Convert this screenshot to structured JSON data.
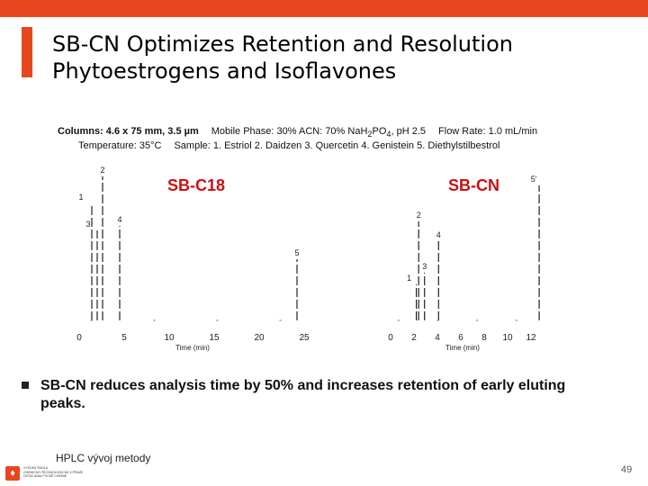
{
  "slide": {
    "title_lines": [
      "SB-CN Optimizes Retention and Resolution",
      "Phytoestrogens and Isoflavones"
    ],
    "conditions": {
      "columns_label": "Columns:",
      "columns_value": "4.6 x 75 mm, 3.5 µm",
      "mobile_phase_pre": "Mobile Phase: 30% ACN: 70% NaH",
      "mobile_phase_sub1": "2",
      "mobile_phase_mid": "PO",
      "mobile_phase_sub2": "4",
      "mobile_phase_post": ", pH 2.5",
      "flow_rate": "Flow Rate: 1.0 mL/min",
      "temperature": "Temperature: 35°C",
      "sample": "Sample:  1. Estriol   2. Daidzen   3. Quercetin   4. Genistein   5. Diethylstilbestrol"
    },
    "bullet": "SB-CN reduces analysis time by 50% and increases retention of early eluting peaks.",
    "footer": "HPLC vývoj metody",
    "logo_lines": [
      "VYSOKÁ ŠKOLA",
      "CHEMICKO-TECHNOLOGICKÁ V PRAZE",
      "ÚSTAV ANALYTICKÉ CHEMIE"
    ],
    "page_number": "49",
    "colors": {
      "accent": "#e8461e",
      "chart_label": "#cc1010"
    }
  },
  "chart_data": [
    {
      "type": "line",
      "title": "SB-C18",
      "xlabel": "Time (min)",
      "xlim": [
        0,
        25
      ],
      "x_ticks": [
        0,
        5,
        10,
        15,
        20,
        25
      ],
      "peaks": [
        {
          "label": "1",
          "time": 1.4
        },
        {
          "label": "2",
          "time": 2.6
        },
        {
          "label": "3",
          "time": 2.0
        },
        {
          "label": "4",
          "time": 4.5
        },
        {
          "label": "5",
          "time": 24.2
        }
      ]
    },
    {
      "type": "line",
      "title": "SB-CN",
      "xlabel": "Time (min)",
      "xlim": [
        0,
        12
      ],
      "x_ticks": [
        0,
        2,
        4,
        6,
        8,
        10,
        12
      ],
      "peaks": [
        {
          "label": "1",
          "time": 2.2
        },
        {
          "label": "2",
          "time": 2.4
        },
        {
          "label": "3",
          "time": 2.9
        },
        {
          "label": "4",
          "time": 4.1
        },
        {
          "label": "5'",
          "time": 12.7
        }
      ]
    }
  ]
}
